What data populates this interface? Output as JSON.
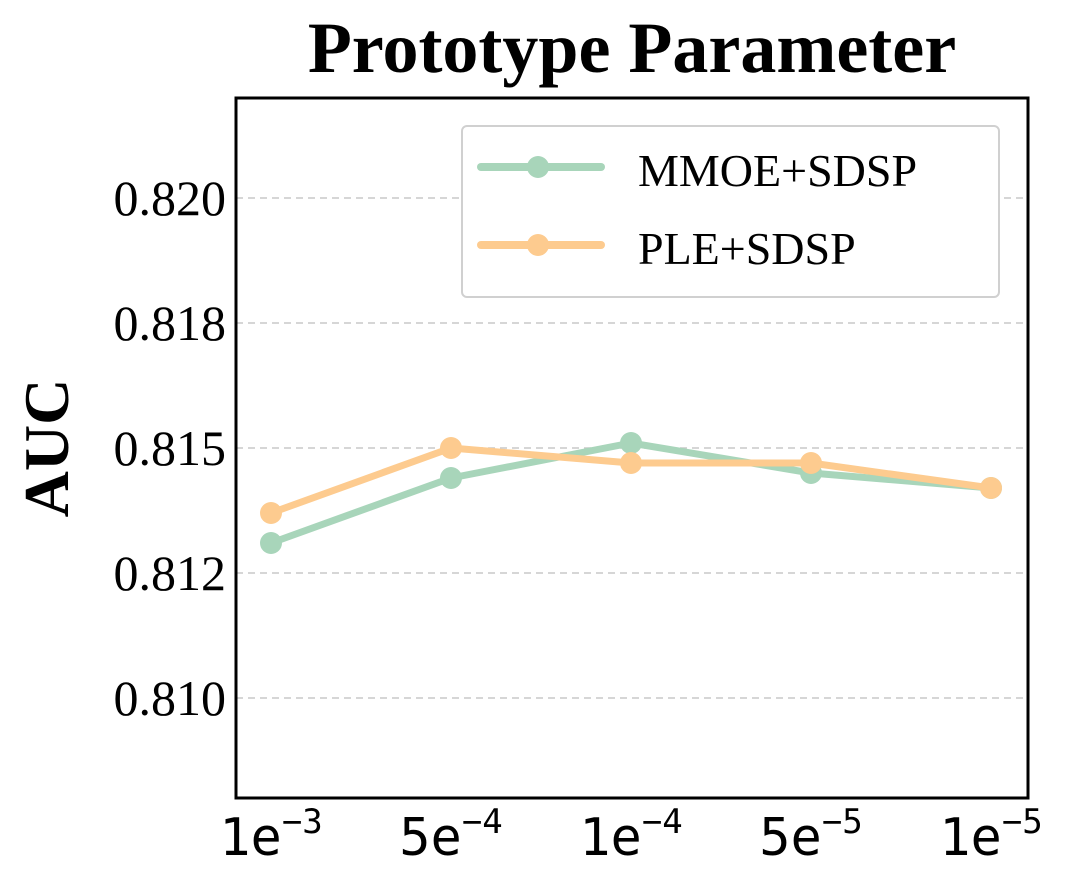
{
  "chart_data": {
    "type": "line",
    "title": "Prototype Parameter",
    "xlabel": "",
    "ylabel": "AUC",
    "categories": [
      {
        "base": "1e",
        "exp": "−3"
      },
      {
        "base": "5e",
        "exp": "−4"
      },
      {
        "base": "1e",
        "exp": "−4"
      },
      {
        "base": "5e",
        "exp": "−5"
      },
      {
        "base": "1e",
        "exp": "−5"
      }
    ],
    "yticks": [
      0.81,
      0.8125,
      0.815,
      0.8175,
      0.82
    ],
    "ytick_labels": [
      "0.810",
      "0.812",
      "0.815",
      "0.818",
      "0.820"
    ],
    "ylim": [
      0.808,
      0.822
    ],
    "grid": true,
    "legend_position": "top-right",
    "series": [
      {
        "name": "MMOE+SDSP",
        "color": "#a8d5ba",
        "values": [
          0.8131,
          0.8144,
          0.8151,
          0.8145,
          0.8142
        ]
      },
      {
        "name": "PLE+SDSP",
        "color": "#fdcb8f",
        "values": [
          0.8137,
          0.815,
          0.8147,
          0.8147,
          0.8142
        ]
      }
    ]
  }
}
